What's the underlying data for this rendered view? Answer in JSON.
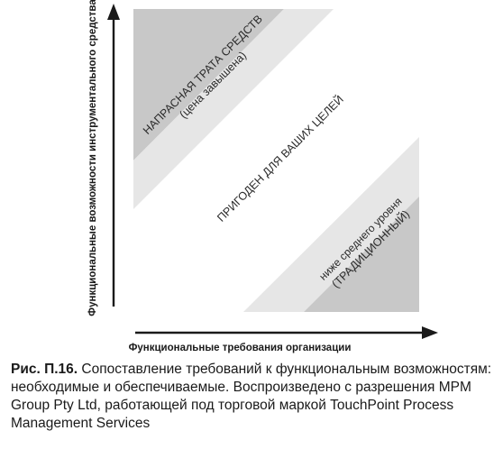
{
  "diagram": {
    "y_axis_label": "Функциональные возможности инструментального средства",
    "x_axis_label": "Функциональные требования организации",
    "zones": {
      "upper": {
        "line1": "НАПРАСНАЯ ТРАТА СРЕДСТВ",
        "line2": "(цена завышена)"
      },
      "middle": {
        "line1": "ПРИГОДЕН ДЛЯ ВАШИХ ЦЕЛЕЙ"
      },
      "lower": {
        "line1": "ниже среднего уровня",
        "line2": "(ТРАДИЦИОННЫЙ)"
      }
    },
    "colors": {
      "dark_band": "#c8c8c8",
      "light_band": "#e6e6e6",
      "center_band": "#ffffff"
    }
  },
  "caption": {
    "figure": "Рис. П.16.",
    "text": "Сопоставление требований к функциональным возможностям: необходимые и обеспечиваемые. Воспроизведено с разрешения MPM Group Pty Ltd, работающей под торговой маркой TouchPoint Process Management Services"
  }
}
